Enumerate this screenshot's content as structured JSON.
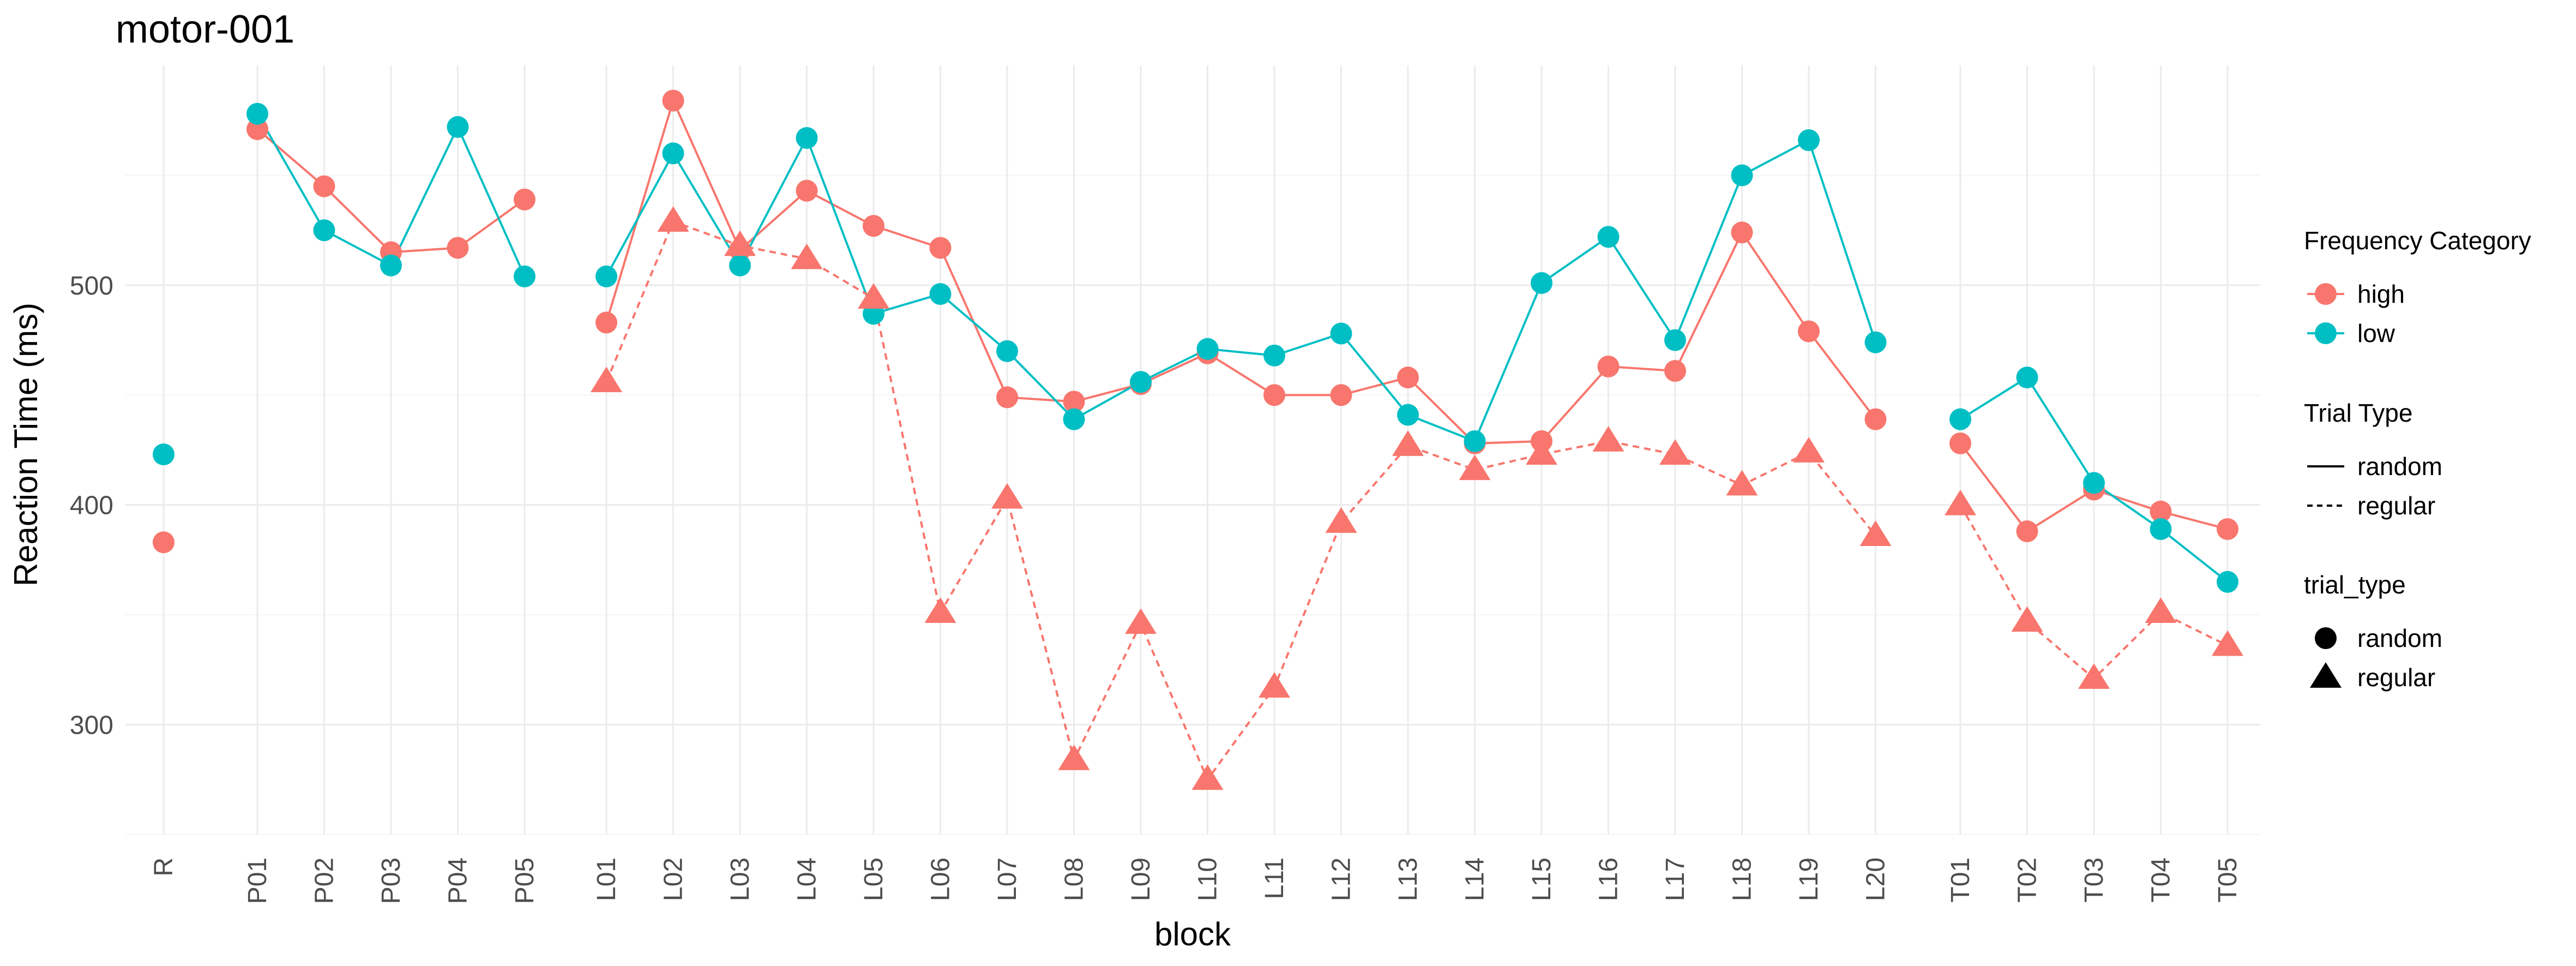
{
  "chart_data": {
    "type": "line",
    "title": "motor-001",
    "xlabel": "block",
    "ylabel": "Reaction Time (ms)",
    "ylim": [
      250,
      600
    ],
    "yticks": [
      300,
      400,
      500
    ],
    "grid": true,
    "categories": [
      "R",
      "P01",
      "P02",
      "P03",
      "P04",
      "P05",
      "L01",
      "L02",
      "L03",
      "L04",
      "L05",
      "L06",
      "L07",
      "L08",
      "L09",
      "L10",
      "L11",
      "L12",
      "L13",
      "L14",
      "L15",
      "L16",
      "L17",
      "L18",
      "L19",
      "L20",
      "T01",
      "T02",
      "T03",
      "T04",
      "T05"
    ],
    "legend_position": "right",
    "legends": [
      {
        "title": "Frequency Category",
        "kind": "color",
        "items": [
          {
            "label": "high",
            "color": "#F8766D"
          },
          {
            "label": "low",
            "color": "#00BFC4"
          }
        ]
      },
      {
        "title": "Trial Type",
        "kind": "linetype",
        "items": [
          {
            "label": "random",
            "dash": "solid"
          },
          {
            "label": "regular",
            "dash": "dotted"
          }
        ]
      },
      {
        "title": "trial_type",
        "kind": "shape",
        "items": [
          {
            "label": "random",
            "shape": "circle"
          },
          {
            "label": "regular",
            "shape": "triangle"
          }
        ]
      }
    ],
    "series": [
      {
        "frequency": "high",
        "trial_type": "random",
        "color": "#F8766D",
        "dash": "solid",
        "shape": "circle",
        "segments": [
          [
            "R"
          ],
          [
            "P01",
            "P02",
            "P03",
            "P04",
            "P05"
          ],
          [
            "L01",
            "L02",
            "L03",
            "L04",
            "L05",
            "L06",
            "L07",
            "L08",
            "L09",
            "L10",
            "L11",
            "L12",
            "L13",
            "L14",
            "L15",
            "L16",
            "L17",
            "L18",
            "L19",
            "L20"
          ],
          [
            "T01",
            "T02",
            "T03",
            "T04",
            "T05"
          ]
        ],
        "values": {
          "R": 383,
          "P01": 571,
          "P02": 545,
          "P03": 515,
          "P04": 517,
          "P05": 539,
          "L01": 483,
          "L02": 584,
          "L03": 516,
          "L04": 543,
          "L05": 527,
          "L06": 517,
          "L07": 449,
          "L08": 447,
          "L09": 455,
          "L10": 469,
          "L11": 450,
          "L12": 450,
          "L13": 458,
          "L14": 428,
          "L15": 429,
          "L16": 463,
          "L17": 461,
          "L18": 524,
          "L19": 479,
          "L20": 439,
          "T01": 428,
          "T02": 388,
          "T03": 407,
          "T04": 397,
          "T05": 389
        }
      },
      {
        "frequency": "low",
        "trial_type": "random",
        "color": "#00BFC4",
        "dash": "solid",
        "shape": "circle",
        "segments": [
          [
            "R"
          ],
          [
            "P01",
            "P02",
            "P03",
            "P04",
            "P05"
          ],
          [
            "L01",
            "L02",
            "L03",
            "L04",
            "L05",
            "L06",
            "L07",
            "L08",
            "L09",
            "L10",
            "L11",
            "L12",
            "L13",
            "L14",
            "L15",
            "L16",
            "L17",
            "L18",
            "L19",
            "L20"
          ],
          [
            "T01",
            "T02",
            "T03",
            "T04",
            "T05"
          ]
        ],
        "values": {
          "R": 423,
          "P01": 578,
          "P02": 525,
          "P03": 509,
          "P04": 572,
          "P05": 504,
          "L01": 504,
          "L02": 560,
          "L03": 509,
          "L04": 567,
          "L05": 487,
          "L06": 496,
          "L07": 470,
          "L08": 439,
          "L09": 456,
          "L10": 471,
          "L11": 468,
          "L12": 478,
          "L13": 441,
          "L14": 429,
          "L15": 501,
          "L16": 522,
          "L17": 475,
          "L18": 550,
          "L19": 566,
          "L20": 474,
          "T01": 439,
          "T02": 458,
          "T03": 410,
          "T04": 389,
          "T05": 365
        }
      },
      {
        "frequency": "high",
        "trial_type": "regular",
        "color": "#F8766D",
        "dash": "dotted",
        "shape": "triangle",
        "segments": [
          [
            "L01",
            "L02",
            "L03",
            "L04",
            "L05",
            "L06",
            "L07",
            "L08",
            "L09",
            "L10",
            "L11",
            "L12",
            "L13",
            "L14",
            "L15",
            "L16",
            "L17",
            "L18",
            "L19",
            "L20"
          ],
          [
            "T01",
            "T02",
            "T03",
            "T04",
            "T05"
          ]
        ],
        "values": {
          "L01": 456,
          "L02": 529,
          "L03": 518,
          "L04": 512,
          "L05": 494,
          "L06": 351,
          "L07": 403,
          "L08": 284,
          "L09": 346,
          "L10": 275,
          "L11": 317,
          "L12": 392,
          "L13": 427,
          "L14": 416,
          "L15": 423,
          "L16": 429,
          "L17": 423,
          "L18": 409,
          "L19": 424,
          "L20": 386,
          "T01": 400,
          "T02": 347,
          "T03": 321,
          "T04": 351,
          "T05": 336
        }
      }
    ]
  }
}
